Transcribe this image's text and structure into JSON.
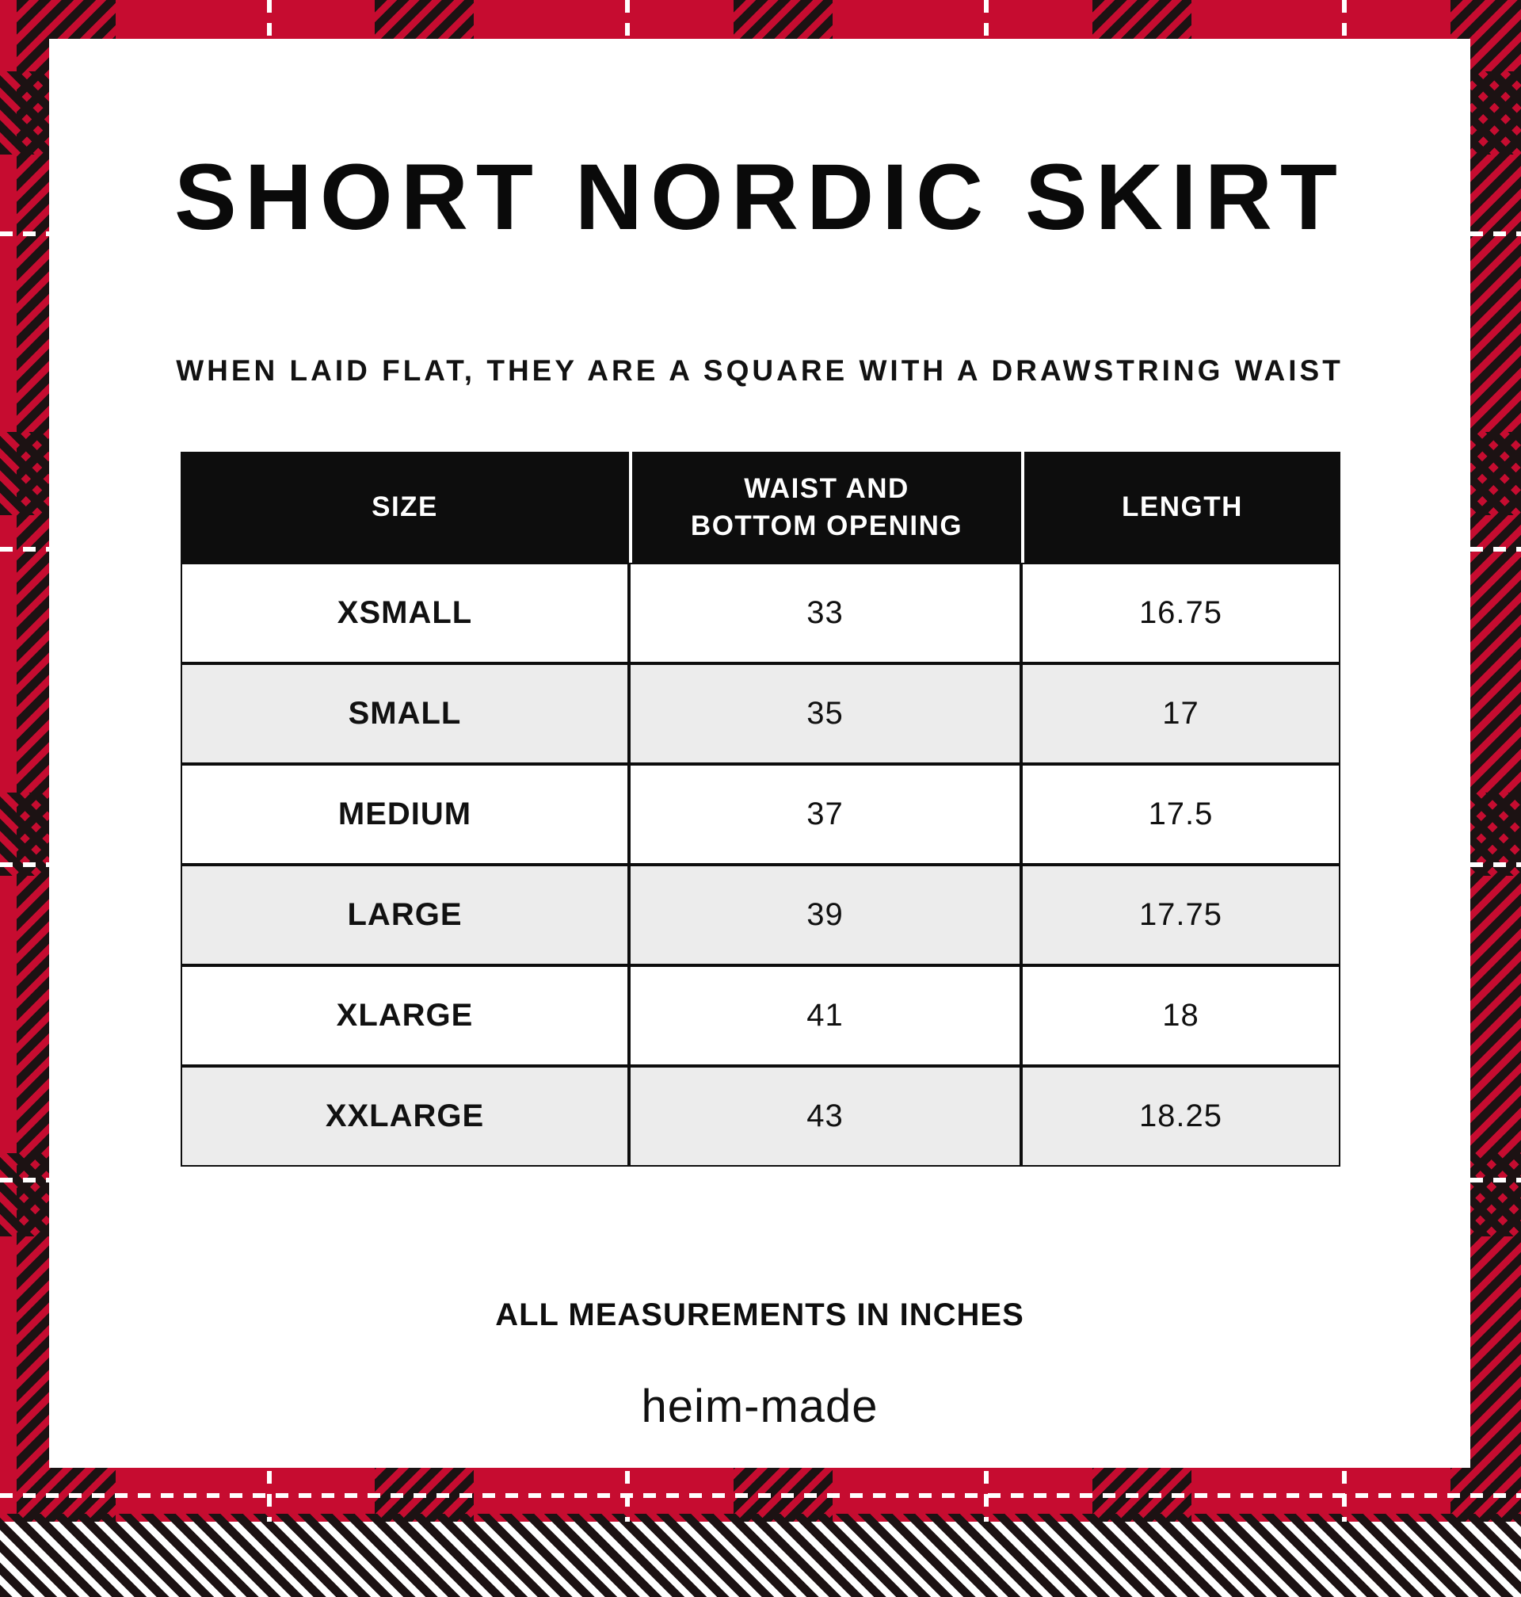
{
  "title": "SHORT NORDIC SKIRT",
  "subtitle": "WHEN LAID FLAT, THEY ARE A SQUARE WITH A DRAWSTRING WAIST",
  "table": {
    "headers": {
      "size": "SIZE",
      "waist": "WAIST AND\nBOTTOM OPENING",
      "length": "LENGTH"
    },
    "rows": [
      {
        "size": "XSMALL",
        "waist": "33",
        "length": "16.75"
      },
      {
        "size": "SMALL",
        "waist": "35",
        "length": "17"
      },
      {
        "size": "MEDIUM",
        "waist": "37",
        "length": "17.5"
      },
      {
        "size": "LARGE",
        "waist": "39",
        "length": "17.75"
      },
      {
        "size": "XLARGE",
        "waist": "41",
        "length": "18"
      },
      {
        "size": "XXLARGE",
        "waist": "43",
        "length": "18.25"
      }
    ]
  },
  "footnote": "ALL MEASUREMENTS IN INCHES",
  "brand": "heim-made",
  "theme": {
    "plaid_red": "#c60c30",
    "plaid_dark": "#1c1213",
    "stitch_white": "#ffffff",
    "row_alt_gray": "#ececec",
    "table_black": "#0d0d0d"
  }
}
